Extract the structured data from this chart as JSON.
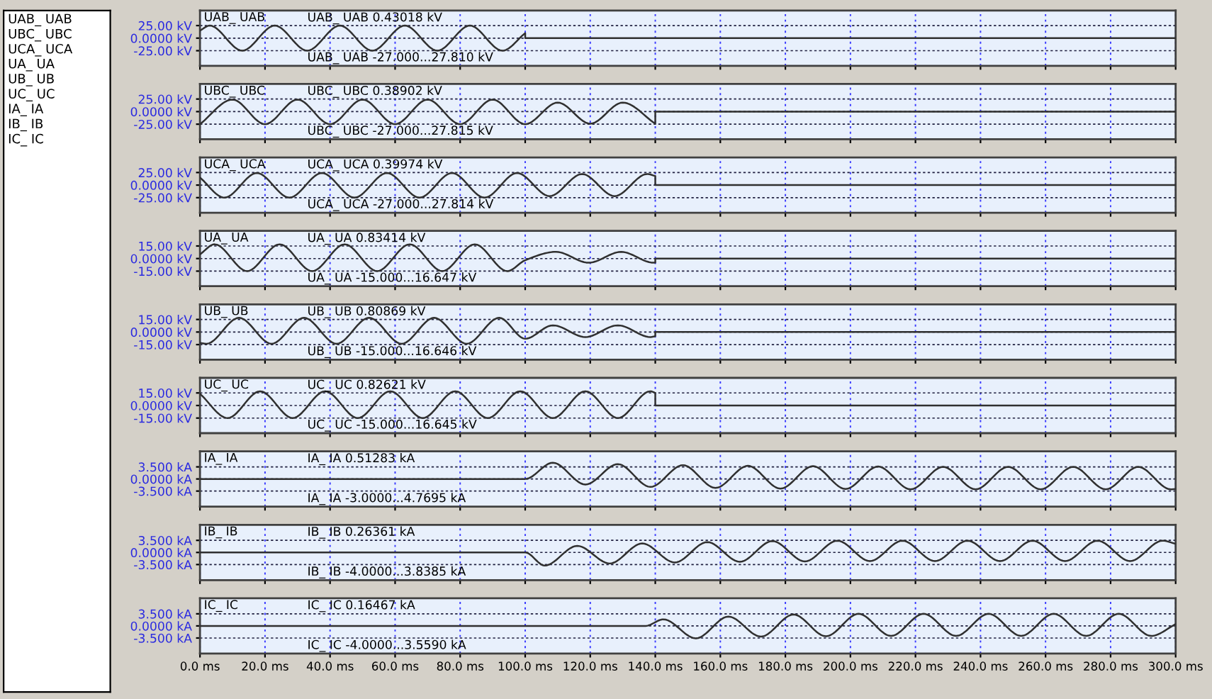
{
  "chart_data": [
    {
      "type": "other",
      "annotations": [
        "UAB_ UAB",
        "UBC_ UBC",
        "UCA_ UCA",
        "UA_ UA",
        "UB_ UB",
        "UC_ UC",
        "IA_ IA",
        "IB_ IB",
        "IC_ IC"
      ]
    },
    {
      "type": "line",
      "title": "UAB_ UAB",
      "annotations": [
        "UAB_ UAB 0.43018 kV",
        "UAB_ UAB -27.000...27.810 kV"
      ],
      "xlim": [
        0,
        300
      ],
      "xticks": [
        0,
        20,
        40,
        60,
        80,
        100,
        120,
        140,
        160,
        180,
        200,
        220,
        240,
        260,
        280,
        300
      ],
      "ylim": [
        -55,
        55
      ],
      "yticks": [
        {
          "value": 25,
          "label": "25.00 kV"
        },
        {
          "value": 0,
          "label": "0.0000 kV"
        },
        {
          "value": -25,
          "label": "-25.00 kV"
        }
      ],
      "grid": true,
      "tick_labels": "y",
      "series": [
        {
          "color": "#303030",
          "x": [
            0,
            3,
            13,
            23,
            33,
            43,
            53,
            63,
            73,
            83,
            93,
            100,
            100,
            300
          ],
          "values": [
            15,
            25,
            -25,
            25,
            -25,
            25,
            -25,
            25,
            -25,
            25,
            -25,
            10,
            0,
            0
          ]
        }
      ]
    },
    {
      "type": "line",
      "title": "UBC_ UBC",
      "annotations": [
        "UBC_ UBC 0.38902 kV",
        "UBC_ UBC -27.000...27.815 kV"
      ],
      "xlim": [
        0,
        300
      ],
      "xticks": [
        0,
        20,
        40,
        60,
        80,
        100,
        120,
        140,
        160,
        180,
        200,
        220,
        240,
        260,
        280,
        300
      ],
      "ylim": [
        -55,
        55
      ],
      "yticks": [
        {
          "value": 25,
          "label": "25.00 kV"
        },
        {
          "value": 0,
          "label": "0.0000 kV"
        },
        {
          "value": -25,
          "label": "-25.00 kV"
        }
      ],
      "grid": true,
      "tick_labels": "y",
      "series": [
        {
          "color": "#303030",
          "x": [
            0,
            10,
            20,
            30,
            40,
            50,
            60,
            70,
            80,
            90,
            100,
            110,
            120,
            130,
            140,
            140,
            300
          ],
          "values": [
            -25,
            24,
            -25,
            24,
            -25,
            24,
            -25,
            24,
            -25,
            24,
            -25,
            18,
            -24,
            18,
            -24,
            0,
            0
          ]
        }
      ]
    },
    {
      "type": "line",
      "title": "UCA_ UCA",
      "annotations": [
        "UCA_ UCA 0.39974 kV",
        "UCA_ UCA -27.000...27.814 kV"
      ],
      "xlim": [
        0,
        300
      ],
      "xticks": [
        0,
        20,
        40,
        60,
        80,
        100,
        120,
        140,
        160,
        180,
        200,
        220,
        240,
        260,
        280,
        300
      ],
      "ylim": [
        -55,
        55
      ],
      "yticks": [
        {
          "value": 25,
          "label": "25.00 kV"
        },
        {
          "value": 0,
          "label": "0.0000 kV"
        },
        {
          "value": -25,
          "label": "-25.00 kV"
        }
      ],
      "grid": true,
      "tick_labels": "y",
      "series": [
        {
          "color": "#303030",
          "x": [
            0,
            7.5,
            17.5,
            27.5,
            37.5,
            47.5,
            57.5,
            67.5,
            77.5,
            87.5,
            97.5,
            107.5,
            117.5,
            127.5,
            137.5,
            140,
            140,
            300
          ],
          "values": [
            15,
            -25,
            24,
            -25,
            24,
            -25,
            24,
            -25,
            24,
            -25,
            24,
            -22,
            22,
            -22,
            22,
            18,
            0,
            0
          ]
        }
      ]
    },
    {
      "type": "line",
      "title": "UA_ UA",
      "annotations": [
        "UA_ UA 0.83414 kV",
        "UA_ UA -15.000...16.647 kV"
      ],
      "xlim": [
        0,
        300
      ],
      "xticks": [
        0,
        20,
        40,
        60,
        80,
        100,
        120,
        140,
        160,
        180,
        200,
        220,
        240,
        260,
        280,
        300
      ],
      "ylim": [
        -33,
        33
      ],
      "yticks": [
        {
          "value": 15,
          "label": "15.00 kV"
        },
        {
          "value": 0,
          "label": "0.0000 kV"
        },
        {
          "value": -15,
          "label": "-15.00 kV"
        }
      ],
      "grid": true,
      "tick_labels": "y",
      "series": [
        {
          "color": "#303030",
          "x": [
            0,
            4.5,
            14.5,
            24.5,
            34.5,
            44.5,
            54.5,
            64.5,
            74.5,
            84.5,
            94.5,
            100,
            109.5,
            119.5,
            129.5,
            139.5,
            140,
            140,
            300
          ],
          "values": [
            5,
            17,
            -15,
            17,
            -15,
            17,
            -15,
            17,
            -15,
            17,
            -15,
            -2,
            8,
            -5,
            8,
            -5,
            -5,
            0,
            0
          ]
        }
      ]
    },
    {
      "type": "line",
      "title": "UB_ UB",
      "annotations": [
        "UB_ UB 0.80869 kV",
        "UB_ UB -15.000...16.646 kV"
      ],
      "xlim": [
        0,
        300
      ],
      "xticks": [
        0,
        20,
        40,
        60,
        80,
        100,
        120,
        140,
        160,
        180,
        200,
        220,
        240,
        260,
        280,
        300
      ],
      "ylim": [
        -33,
        33
      ],
      "yticks": [
        {
          "value": 15,
          "label": "15.00 kV"
        },
        {
          "value": 0,
          "label": "0.0000 kV"
        },
        {
          "value": -15,
          "label": "-15.00 kV"
        }
      ],
      "grid": true,
      "tick_labels": "y",
      "series": [
        {
          "color": "#303030",
          "x": [
            0,
            2,
            12,
            22,
            32,
            42,
            52,
            62,
            72,
            82,
            92,
            100,
            108.5,
            118.5,
            128.5,
            138.5,
            140,
            140,
            300
          ],
          "values": [
            -13,
            -14,
            17,
            -14,
            17,
            -14,
            17,
            -14,
            17,
            -14,
            17,
            -8,
            8,
            -6,
            8,
            -6,
            -5,
            0,
            0
          ]
        }
      ]
    },
    {
      "type": "line",
      "title": "UC_ UC",
      "annotations": [
        "UC_ UC 0.82621 kV",
        "UC_ UC -15.000...16.645 kV"
      ],
      "xlim": [
        0,
        300
      ],
      "xticks": [
        0,
        20,
        40,
        60,
        80,
        100,
        120,
        140,
        160,
        180,
        200,
        220,
        240,
        260,
        280,
        300
      ],
      "ylim": [
        -33,
        33
      ],
      "yticks": [
        {
          "value": 15,
          "label": "15.00 kV"
        },
        {
          "value": 0,
          "label": "0.0000 kV"
        },
        {
          "value": -15,
          "label": "-15.00 kV"
        }
      ],
      "grid": true,
      "tick_labels": "y",
      "series": [
        {
          "color": "#303030",
          "x": [
            0,
            8.5,
            18.5,
            28.5,
            38.5,
            48.5,
            58.5,
            68.5,
            78.5,
            88.5,
            98.5,
            108.5,
            118.5,
            128.5,
            138.5,
            140,
            140,
            300
          ],
          "values": [
            14,
            -15,
            17,
            -15,
            17,
            -15,
            17,
            -15,
            17,
            -15,
            17,
            -15,
            17,
            -15,
            17,
            15,
            0,
            0
          ]
        }
      ]
    },
    {
      "type": "line",
      "title": "IA_ IA",
      "annotations": [
        "IA_ IA 0.51283 kA",
        "IA_ IA -3.0000...4.7695 kA"
      ],
      "xlim": [
        0,
        300
      ],
      "xticks": [
        0,
        20,
        40,
        60,
        80,
        100,
        120,
        140,
        160,
        180,
        200,
        220,
        240,
        260,
        280,
        300
      ],
      "ylim": [
        -8,
        8
      ],
      "yticks": [
        {
          "value": 3.5,
          "label": "3.500 kA"
        },
        {
          "value": 0,
          "label": "0.0000 kA"
        },
        {
          "value": -3.5,
          "label": "-3.500 kA"
        }
      ],
      "grid": true,
      "tick_labels": "y",
      "series": [
        {
          "color": "#303030",
          "x": [
            0,
            100,
            108.5,
            118.5,
            128.5,
            138.5,
            148.5,
            158.5,
            168.5,
            178.5,
            188.5,
            198.5,
            208.5,
            218.5,
            228.5,
            238.5,
            248.5,
            258.5,
            268.5,
            278.5,
            288.5,
            298.5,
            300
          ],
          "values": [
            0,
            0,
            4.7,
            -1.6,
            4.3,
            -2.3,
            4.0,
            -2.6,
            3.8,
            -2.8,
            3.7,
            -2.9,
            3.6,
            -3.0,
            3.5,
            -3.0,
            3.5,
            -3.0,
            3.5,
            -3.0,
            3.5,
            -3.0,
            -2.9
          ]
        }
      ]
    },
    {
      "type": "line",
      "title": "IB_ IB",
      "annotations": [
        "IB_ IB 0.26361 kA",
        "IB_ IB -4.0000...3.8385 kA"
      ],
      "xlim": [
        0,
        300
      ],
      "xticks": [
        0,
        20,
        40,
        60,
        80,
        100,
        120,
        140,
        160,
        180,
        200,
        220,
        240,
        260,
        280,
        300
      ],
      "ylim": [
        -8,
        8
      ],
      "yticks": [
        {
          "value": 3.5,
          "label": "3.500 kA"
        },
        {
          "value": 0,
          "label": "0.0000 kA"
        },
        {
          "value": -3.5,
          "label": "-3.500 kA"
        }
      ],
      "grid": true,
      "tick_labels": "y",
      "series": [
        {
          "color": "#303030",
          "x": [
            0,
            100,
            106,
            116,
            126,
            136,
            146,
            156,
            166,
            176,
            186,
            196,
            206,
            216,
            226,
            236,
            246,
            256,
            266,
            276,
            286,
            296,
            300
          ],
          "values": [
            0,
            0,
            -3.8,
            1.9,
            -3.2,
            2.6,
            -2.9,
            3.0,
            -2.7,
            3.3,
            -2.6,
            3.4,
            -2.5,
            3.4,
            -2.5,
            3.4,
            -2.5,
            3.4,
            -2.5,
            3.4,
            -2.5,
            3.4,
            2.5
          ]
        }
      ]
    },
    {
      "type": "line",
      "title": "IC_ IC",
      "annotations": [
        "IC_ IC 0.16467 kA",
        "IC_ IC -4.0000...3.5590 kA"
      ],
      "xlim": [
        0,
        300
      ],
      "xticks": [
        {
          "value": 0,
          "label": "0.0 ms"
        },
        {
          "value": 20,
          "label": "20.0 ms"
        },
        {
          "value": 40,
          "label": "40.0 ms"
        },
        {
          "value": 60,
          "label": "60.0 ms"
        },
        {
          "value": 80,
          "label": "80.0 ms"
        },
        {
          "value": 100,
          "label": "100.0 ms"
        },
        {
          "value": 120,
          "label": "120.0 ms"
        },
        {
          "value": 140,
          "label": "140.0 ms"
        },
        {
          "value": 160,
          "label": "160.0 ms"
        },
        {
          "value": 180,
          "label": "180.0 ms"
        },
        {
          "value": 200,
          "label": "200.0 ms"
        },
        {
          "value": 220,
          "label": "220.0 ms"
        },
        {
          "value": 240,
          "label": "240.0 ms"
        },
        {
          "value": 260,
          "label": "260.0 ms"
        },
        {
          "value": 280,
          "label": "280.0 ms"
        },
        {
          "value": 300,
          "label": "300.0 ms"
        }
      ],
      "ylim": [
        -8,
        8
      ],
      "yticks": [
        {
          "value": 3.5,
          "label": "3.500 kA"
        },
        {
          "value": 0,
          "label": "0.0000 kA"
        },
        {
          "value": -3.5,
          "label": "-3.500 kA"
        }
      ],
      "grid": true,
      "series": [
        {
          "color": "#303030",
          "x": [
            0,
            137,
            142.5,
            152.5,
            162.5,
            172.5,
            182.5,
            192.5,
            202.5,
            212.5,
            222.5,
            232.5,
            242.5,
            252.5,
            262.5,
            272.5,
            282.5,
            292.5,
            300
          ],
          "values": [
            0,
            0,
            1.9,
            -3.6,
            2.7,
            -3.1,
            3.3,
            -3.0,
            3.5,
            -2.9,
            3.5,
            -2.9,
            3.5,
            -2.9,
            3.5,
            -2.9,
            3.5,
            -2.9,
            0.5
          ]
        }
      ]
    }
  ]
}
